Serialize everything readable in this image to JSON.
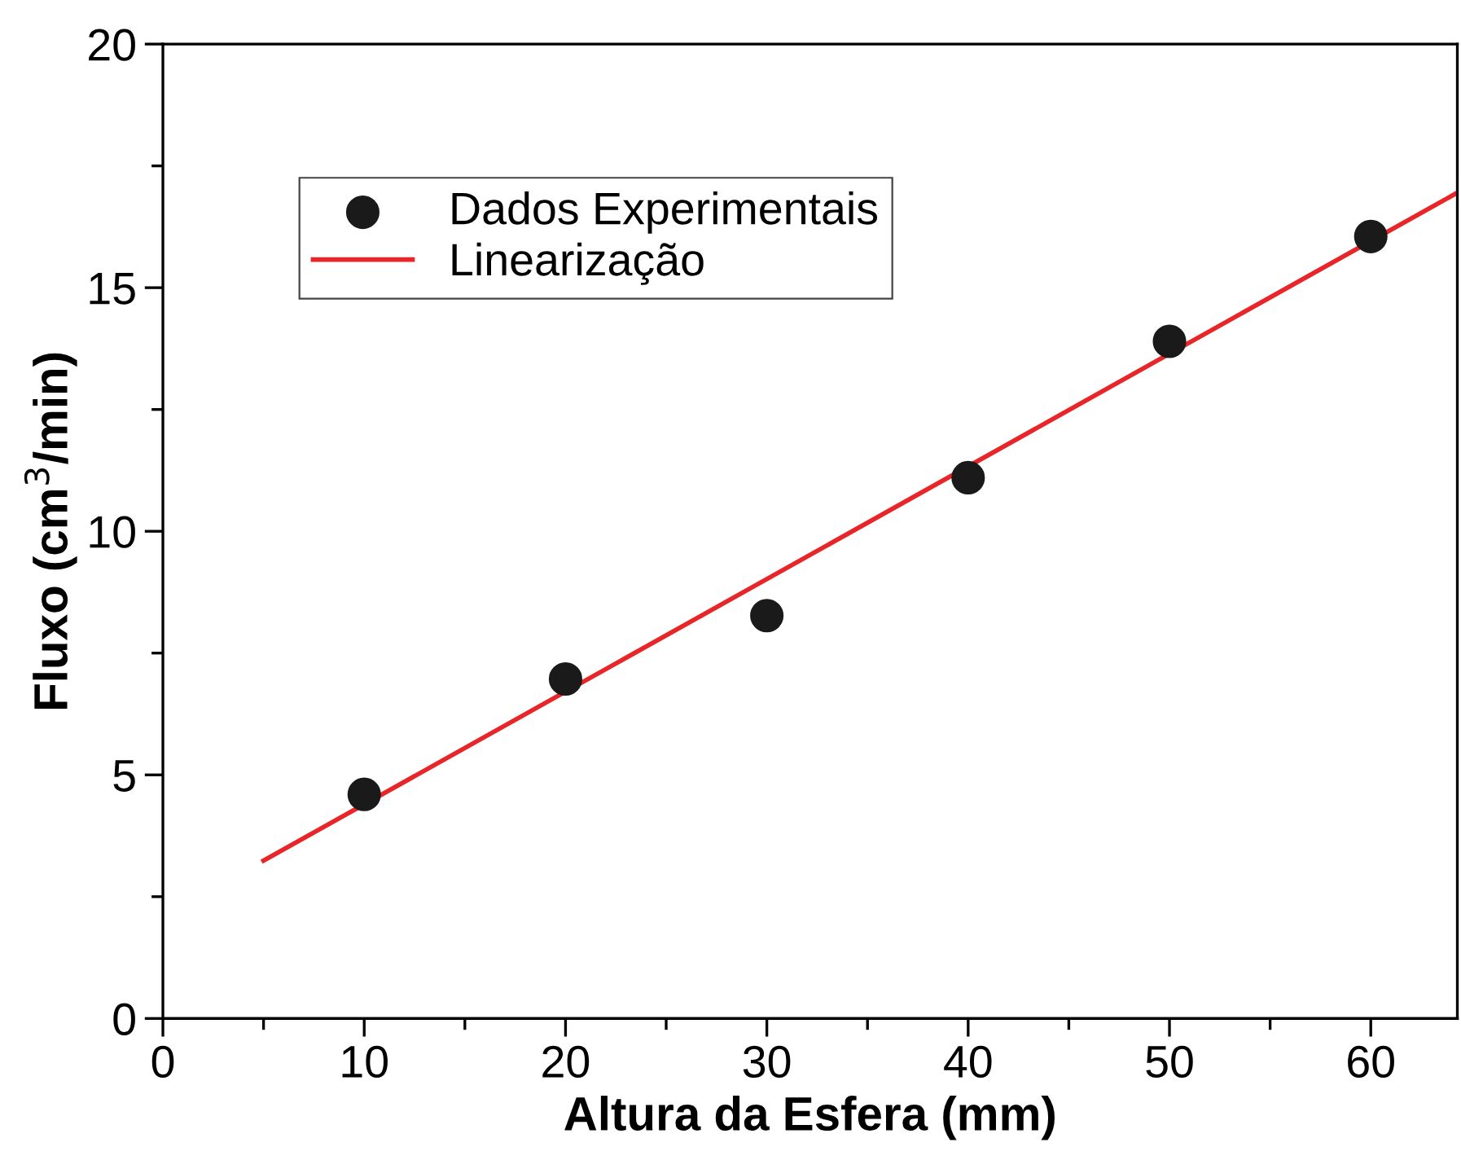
{
  "chart_data": {
    "type": "scatter",
    "xlabel": "Altura da Esfera (mm)",
    "ylabel": "Fluxo (cm$^{3}$/min)",
    "series": [
      {
        "name": "Dados Experimentais",
        "color": "#1a1a1a",
        "marker": "circle",
        "x": [
          10,
          20,
          30,
          40,
          50,
          60
        ],
        "values": [
          4.6,
          6.97,
          8.27,
          11.1,
          13.9,
          16.05
        ]
      },
      {
        "name": "Linearização",
        "type": "line",
        "color": "#e8262a",
        "line_style": "solid",
        "x": [
          5,
          64.3
        ],
        "values": [
          3.24,
          16.95
        ]
      }
    ],
    "xlim": [
      0,
      64.3
    ],
    "ylim": [
      0,
      20
    ],
    "xticks": [
      0,
      {
        "value": 5,
        "label": null
      },
      10,
      {
        "value": 15,
        "label": null
      },
      20,
      {
        "value": 25,
        "label": null
      },
      30,
      {
        "value": 35,
        "label": null
      },
      40,
      {
        "value": 45,
        "label": null
      },
      50,
      {
        "value": 55,
        "label": null
      },
      60
    ],
    "yticks": [
      0,
      {
        "value": 2.5,
        "label": null
      },
      5,
      {
        "value": 7.5,
        "label": null
      },
      10,
      {
        "value": 12.5,
        "label": null
      },
      15,
      {
        "value": 17.5,
        "label": null
      },
      20
    ],
    "grid": false,
    "legend": "top left"
  }
}
